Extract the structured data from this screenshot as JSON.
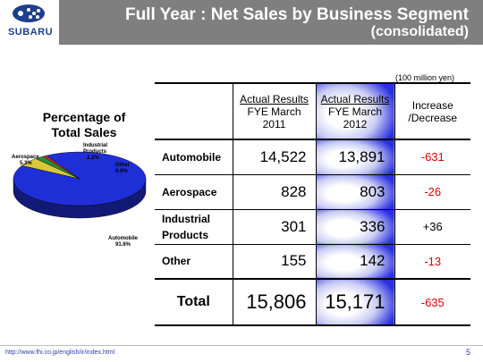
{
  "header": {
    "logo_text": "SUBARU",
    "title": "Full Year : Net Sales by Business Segment",
    "subtitle": "(consolidated)"
  },
  "unit_note": "(100 million yen)",
  "pie": {
    "title_line1": "Percentage of",
    "title_line2": "Total Sales",
    "labels": {
      "aerospace": [
        "Aerospace",
        "5.3%"
      ],
      "industrial": [
        "Industrial",
        "Products",
        "2.2%"
      ],
      "other": [
        "Other",
        "0.9%"
      ],
      "automobile": [
        "Automobile",
        "91.6%"
      ]
    }
  },
  "chart_data": {
    "type": "pie",
    "categories": [
      "Automobile",
      "Aerospace",
      "Industrial Products",
      "Other"
    ],
    "values": [
      91.6,
      5.3,
      2.2,
      0.9
    ],
    "colors": [
      "#1f2fd8",
      "#d9c93a",
      "#2a8c3a",
      "#d42a2a"
    ],
    "title": "Percentage of Total Sales"
  },
  "table": {
    "headers": {
      "col1": [
        "Actual Results",
        "FYE March",
        "2011"
      ],
      "col2": [
        "Actual Results",
        "FYE March",
        "2012"
      ],
      "col3": [
        "Increase",
        "/Decrease"
      ]
    },
    "rows": [
      {
        "label": [
          "Automobile"
        ],
        "fy2011": "14,522",
        "fy2012": "13,891",
        "change": "-631"
      },
      {
        "label": [
          "Aerospace"
        ],
        "fy2011": "828",
        "fy2012": "803",
        "change": "-26"
      },
      {
        "label": [
          "Industrial",
          "Products"
        ],
        "fy2011": "301",
        "fy2012": "336",
        "change": "+36"
      },
      {
        "label": [
          "Other"
        ],
        "fy2011": "155",
        "fy2012": "142",
        "change": "-13"
      }
    ],
    "total": {
      "label": "Total",
      "fy2011": "15,806",
      "fy2012": "15,171",
      "change": "-635"
    }
  },
  "footer": {
    "url": "http://www.fhi.co.jp/english/ir/index.html",
    "page": "5"
  },
  "colors": {
    "header_bg": "#7f7f7f",
    "logo_blue": "#1d3f8c",
    "negative": "#e00000",
    "highlight_blue": "#2a2fe0"
  }
}
